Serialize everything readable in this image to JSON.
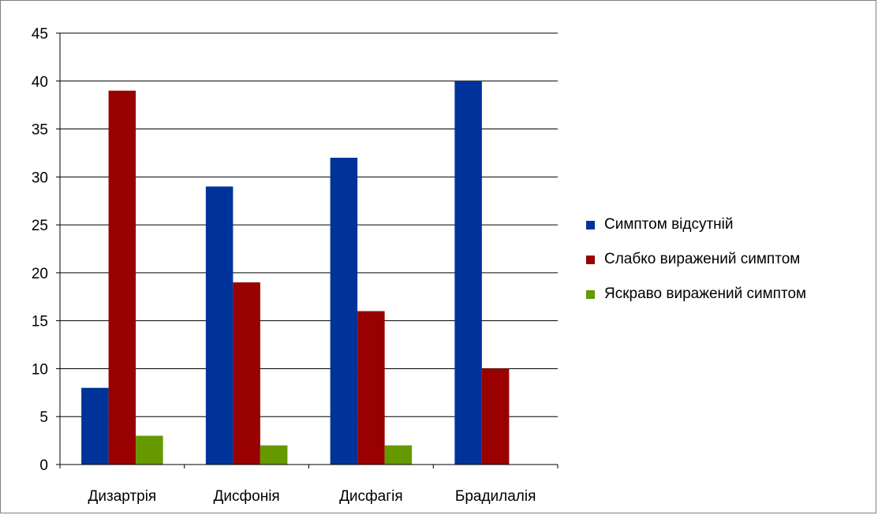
{
  "chart_data": {
    "type": "bar",
    "categories": [
      "Дизартрія",
      "Дисфонія",
      "Дисфагія",
      "Брадилалія"
    ],
    "series": [
      {
        "name": "Симптом відсутній",
        "color": "#003399",
        "values": [
          8,
          29,
          32,
          40
        ]
      },
      {
        "name": "Слабко виражений симптом",
        "color": "#990000",
        "values": [
          39,
          19,
          16,
          10
        ]
      },
      {
        "name": "Яскраво виражений симптом",
        "color": "#669900",
        "values": [
          3,
          2,
          2,
          0
        ]
      }
    ],
    "ylim": [
      0,
      45
    ],
    "yticks": [
      "0",
      "5",
      "10",
      "15",
      "20",
      "25",
      "30",
      "35",
      "40",
      "45"
    ],
    "grid": true,
    "legend_position": "right"
  }
}
